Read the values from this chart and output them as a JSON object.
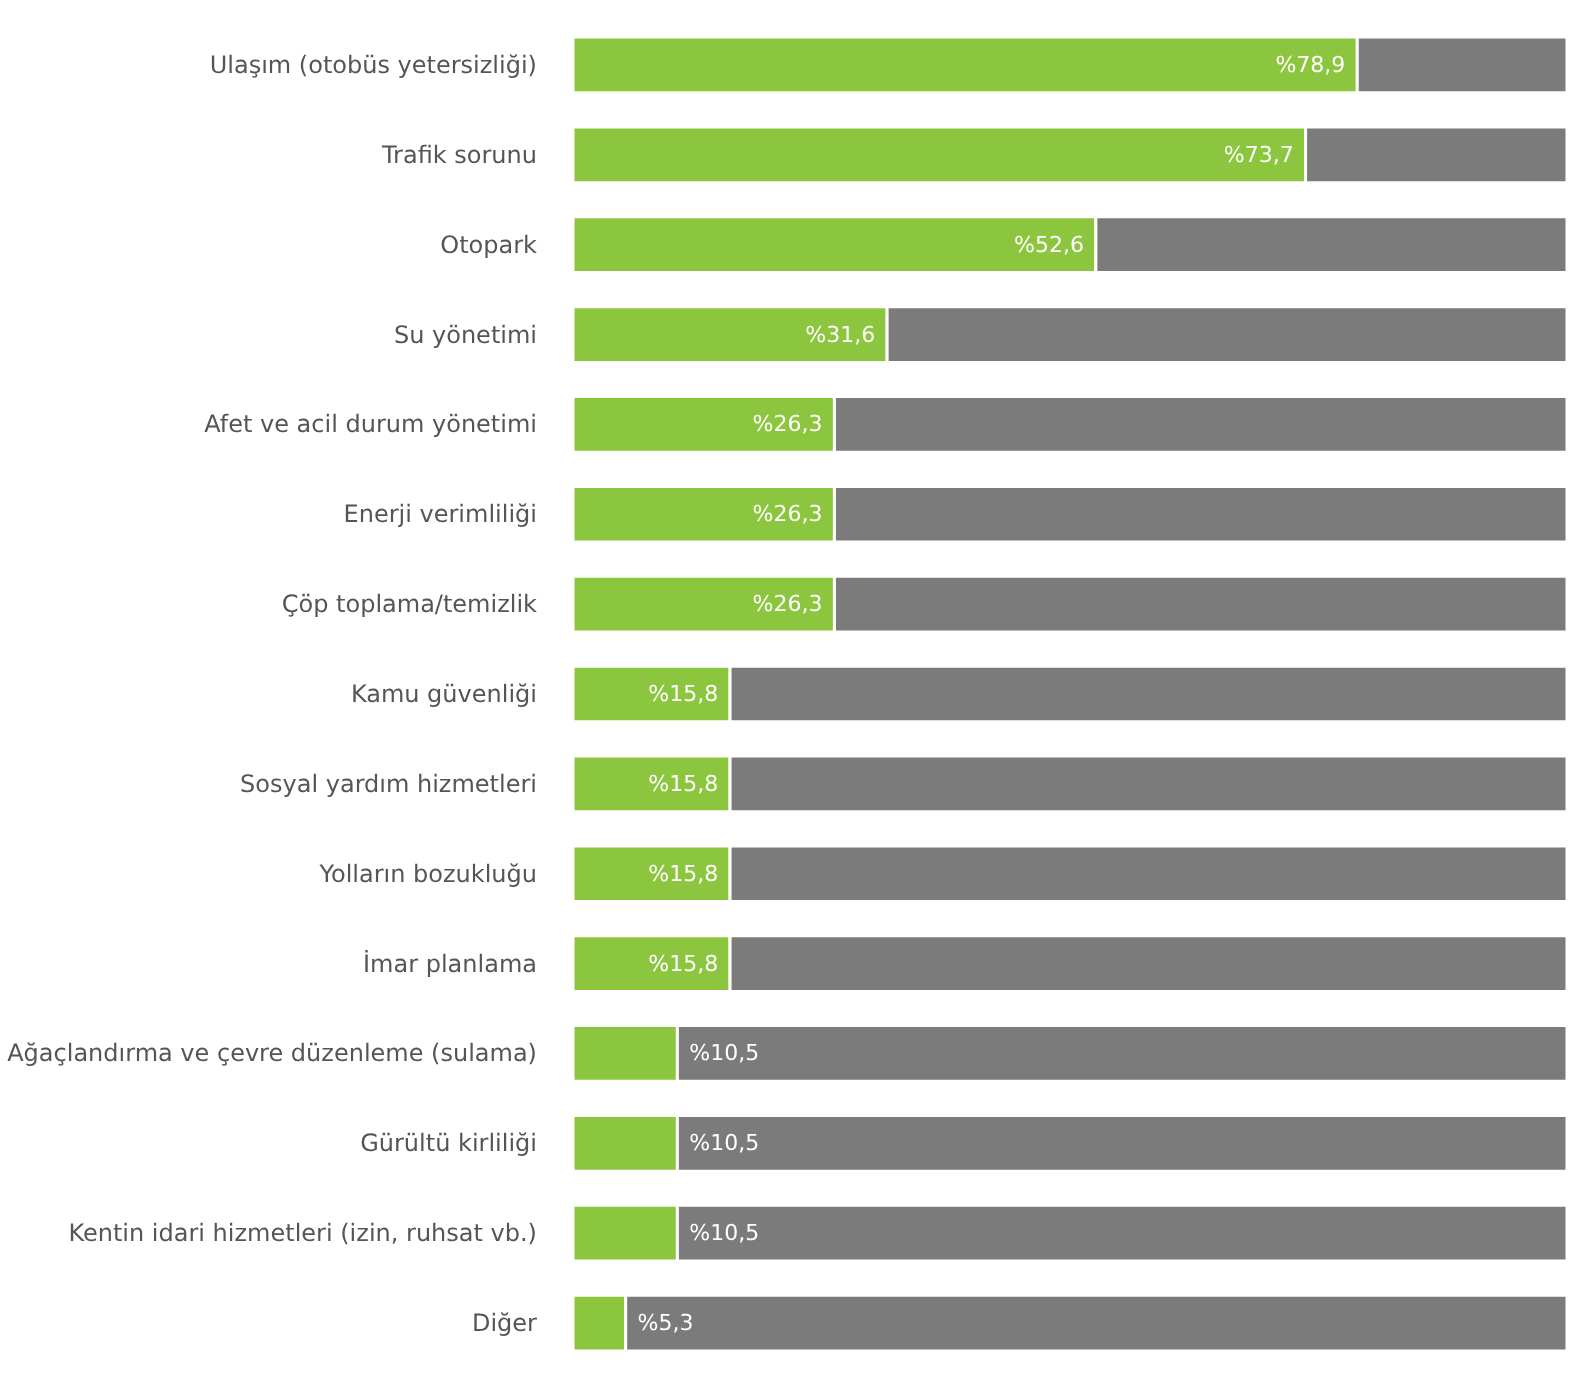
{
  "chart_data": {
    "type": "bar",
    "orientation": "horizontal",
    "stacked": true,
    "categories": [
      "Ulaşım (otobüs yetersizliği)",
      "Trafik sorunu",
      "Otopark",
      "Su yönetimi",
      "Afet ve acil durum yönetimi",
      "Enerji verimliliği",
      "Çöp toplama/temizlik",
      "Kamu güvenliği",
      "Sosyal yardım hizmetleri",
      "Yolların bozukluğu",
      "İmar planlama",
      "Ağaçlandırma ve çevre düzenleme (sulama)",
      "Gürültü kirliliği",
      "Kentin idari hizmetleri (izin, ruhsat vb.)",
      "Diğer"
    ],
    "series": [
      {
        "color": "#8cc63e",
        "values": [
          78.9,
          73.7,
          52.6,
          31.6,
          26.3,
          26.3,
          26.3,
          15.8,
          15.8,
          15.8,
          15.8,
          10.5,
          10.5,
          10.5,
          5.3
        ],
        "value_labels": [
          "%78,9",
          "%73,7",
          "%52,6",
          "%31,6",
          "%26,3",
          "%26,3",
          "%26,3",
          "%15,8",
          "%15,8",
          "%15,8",
          "%15,8",
          "%10,5",
          "%10,5",
          "%10,5",
          "%5,3"
        ]
      },
      {
        "color": "#7b7b7b",
        "values": [
          21.1,
          26.3,
          47.4,
          68.4,
          73.7,
          73.7,
          73.7,
          84.2,
          84.2,
          84.2,
          84.2,
          89.5,
          89.5,
          89.5,
          94.7
        ]
      }
    ],
    "xlim": [
      0,
      100
    ],
    "tick_labels": "y"
  }
}
